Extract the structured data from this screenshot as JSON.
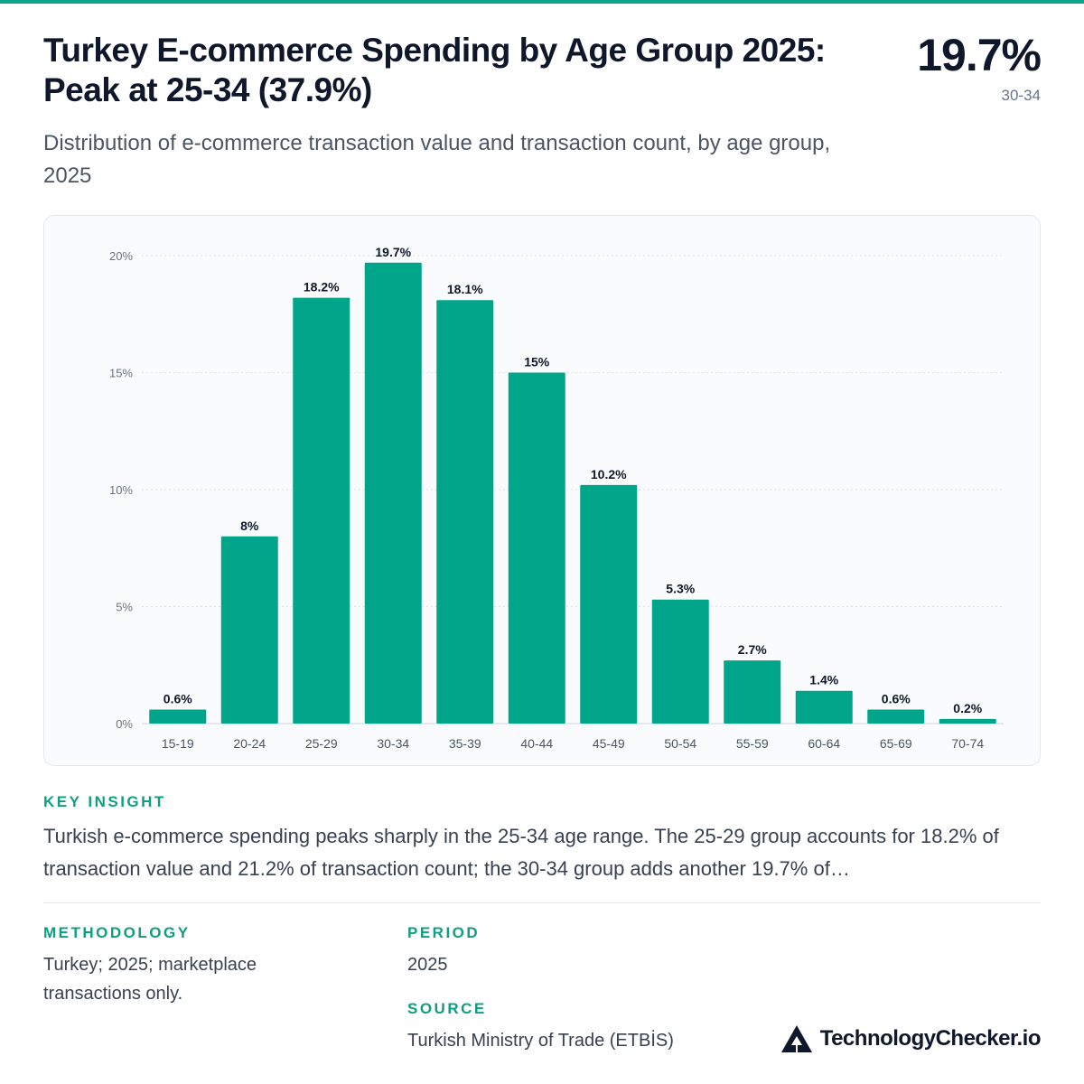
{
  "header": {
    "title_line1": "Turkey E-commerce Spending by Age Group 2025:",
    "title_line2": "Peak at 25-34 (37.9%)",
    "subtitle": "Distribution of e-commerce transaction value and transaction count, by age group, 2025",
    "stat_value": "19.7%",
    "stat_label": "30-34"
  },
  "chart_data": {
    "type": "bar",
    "categories": [
      "15-19",
      "20-24",
      "25-29",
      "30-34",
      "35-39",
      "40-44",
      "45-49",
      "50-54",
      "55-59",
      "60-64",
      "65-69",
      "70-74"
    ],
    "values": [
      0.6,
      8,
      18.2,
      19.7,
      18.1,
      15,
      10.2,
      5.3,
      2.7,
      1.4,
      0.6,
      0.2
    ],
    "value_labels": [
      "0.6%",
      "8%",
      "18.2%",
      "19.7%",
      "18.1%",
      "15%",
      "10.2%",
      "5.3%",
      "2.7%",
      "1.4%",
      "0.6%",
      "0.2%"
    ],
    "yticks": [
      0,
      5,
      10,
      15,
      20
    ],
    "ytick_labels": [
      "0%",
      "5%",
      "10%",
      "15%",
      "20%"
    ],
    "ylim": [
      0,
      20
    ],
    "grid": true,
    "bar_color": "#00a58a"
  },
  "insight": {
    "label": "KEY INSIGHT",
    "text": "Turkish e-commerce spending peaks sharply in the 25-34 age range. The 25-29 group accounts for 18.2% of transaction value and 21.2% of transaction count; the 30-34 group adds another 19.7% of…"
  },
  "meta": {
    "methodology_label": "METHODOLOGY",
    "methodology_text": "Turkey; 2025; marketplace transactions only.",
    "period_label": "PERIOD",
    "period_text": "2025",
    "source_label": "SOURCE",
    "source_text": "Turkish Ministry of Trade (ETBİS)"
  },
  "brand": {
    "name": "TechnologyChecker.io",
    "icon": "triangle-logo-icon"
  }
}
